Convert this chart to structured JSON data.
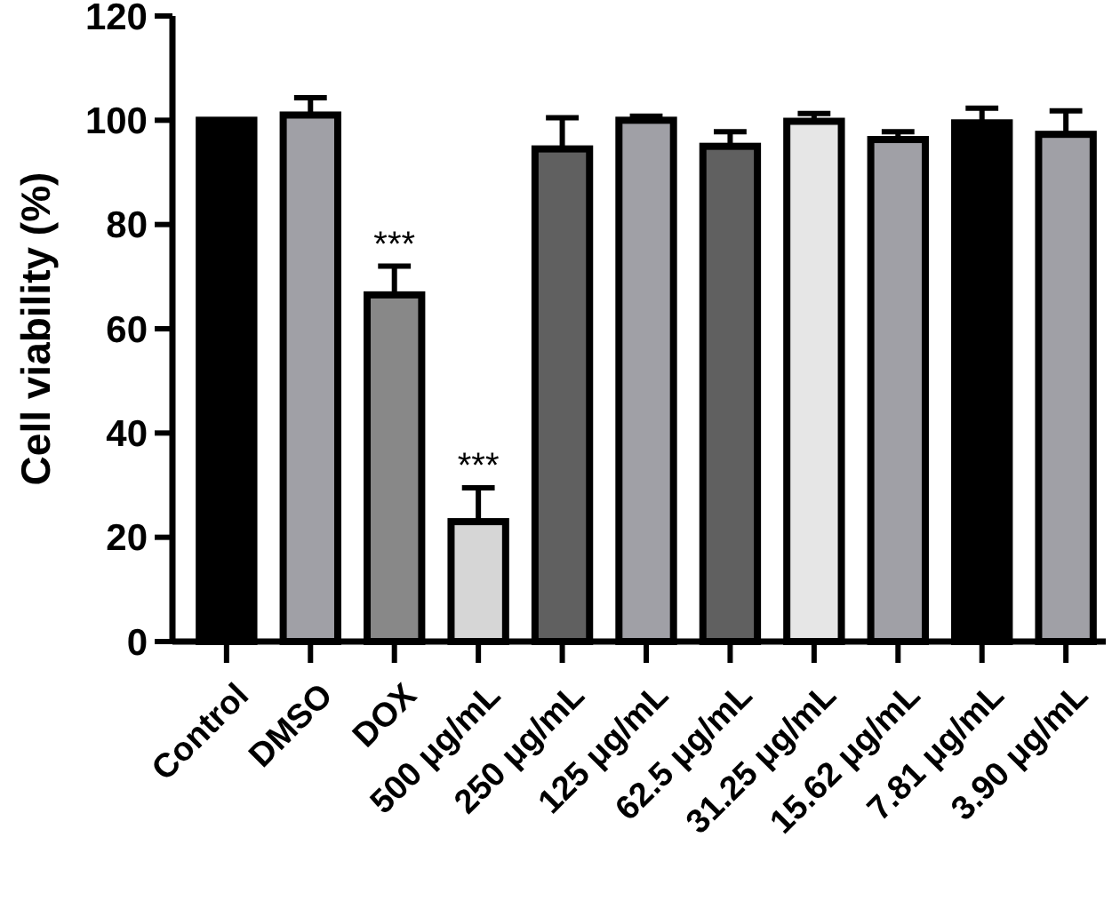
{
  "chart_data": {
    "type": "bar",
    "ylabel": "Cell viability (%)",
    "categories": [
      "Control",
      "DMSO",
      "DOX",
      "500 μg/mL",
      "250 μg/mL",
      "125 μg/mL",
      "62.5 μg/mL",
      "31.25 μg/mL",
      "15.62 μg/mL",
      "7.81 μg/mL",
      "3.90 μg/mL"
    ],
    "values": [
      100,
      101,
      66.5,
      23,
      94.5,
      100,
      95,
      99.8,
      96.3,
      99.5,
      97.3
    ],
    "errors": [
      null,
      [
        101,
        104.3
      ],
      [
        66.5,
        72
      ],
      [
        23,
        29.5
      ],
      [
        94.5,
        100.5
      ],
      [
        100,
        100.8
      ],
      [
        95,
        97.8
      ],
      [
        99.8,
        101.3
      ],
      [
        96.3,
        97.8
      ],
      [
        99.5,
        102.3
      ],
      [
        97.3,
        101.8
      ]
    ],
    "colors": [
      "#000000",
      "#a0a0a6",
      "#888888",
      "#d6d6d6",
      "#606060",
      "#a0a0a6",
      "#606060",
      "#e6e6e6",
      "#a0a0a6",
      "#000000",
      "#a0a0a6"
    ],
    "ylim": [
      0,
      120
    ],
    "yticks": [
      0,
      20,
      40,
      60,
      80,
      100,
      120
    ],
    "annotations": [
      {
        "text": "***",
        "x": "DOX",
        "y": 72
      },
      {
        "text": "***",
        "x": "500 μg/mL",
        "y": 29.5
      }
    ],
    "grid": false
  }
}
